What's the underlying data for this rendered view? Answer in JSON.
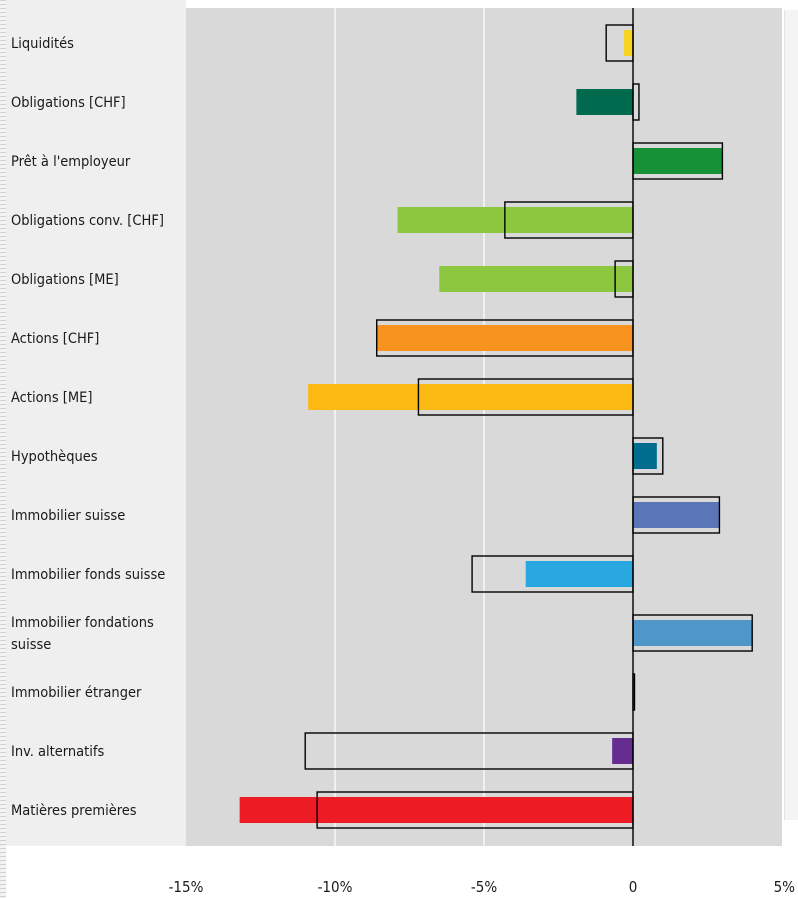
{
  "chart_data": {
    "type": "bar",
    "orientation": "horizontal",
    "title": "",
    "xlabel": "",
    "ylabel": "",
    "xlim": [
      -15,
      5
    ],
    "x_ticks": [
      "-15%",
      "-10%",
      "-5%",
      "0",
      "5%"
    ],
    "x_tick_values": [
      -15,
      -10,
      -5,
      0,
      5
    ],
    "grid": "vertical lines at -10% and -5%",
    "legend": "none",
    "categories": [
      "Liquidités",
      "Obligations [CHF]",
      "Prêt à l'employeur",
      "Obligations conv. [CHF]",
      "Obligations [ME]",
      "Actions [CHF]",
      "Actions [ME]",
      "Hypothèques",
      "Immobilier suisse",
      "Immobilier fonds suisse",
      "Immobilier fondations suisse",
      "Immobilier étranger",
      "Inv. alternatifs",
      "Matières premières"
    ],
    "series": [
      {
        "values": [
          -0.3,
          -1.9,
          3.0,
          -7.9,
          -6.5,
          -8.6,
          -10.9,
          0.8,
          2.9,
          -3.6,
          4.0,
          0.0,
          -0.7,
          -13.2
        ],
        "colors": [
          "#f7d21e",
          "#006a4e",
          "#179137",
          "#8dc63f",
          "#8dc63f",
          "#f7931e",
          "#fdb913",
          "#006d8f",
          "#5b76b7",
          "#29a8e0",
          "#4f97c9",
          "#a0a0a0",
          "#662d91",
          "#ed1c24"
        ]
      },
      {
        "style": "outline",
        "values": [
          -0.9,
          0.2,
          3.0,
          -4.3,
          -0.6,
          -8.6,
          -7.2,
          1.0,
          2.9,
          -5.4,
          4.0,
          0.05,
          -11.0,
          -10.6
        ]
      }
    ]
  },
  "colors": {
    "plot_background": "#d9d9d9",
    "label_panel": "#efefef",
    "outline": "#000000",
    "gridline": "#ffffff"
  }
}
